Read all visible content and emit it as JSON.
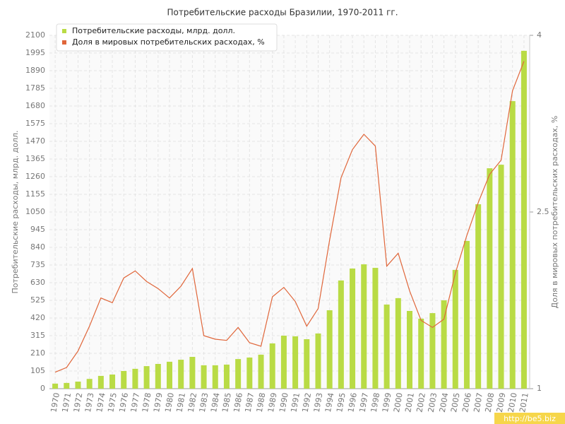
{
  "chart_data": {
    "type": "bar-line",
    "title": "Потребительские расходы Бразилии, 1970-2011 гг.",
    "y_label": "Потребительские расходы, млрд. долл.",
    "y2_label": "Доля в мировых потребительских расходах, %",
    "categories": [
      "1970",
      "1971",
      "1972",
      "1973",
      "1974",
      "1975",
      "1976",
      "1977",
      "1978",
      "1979",
      "1980",
      "1981",
      "1982",
      "1983",
      "1984",
      "1985",
      "1986",
      "1987",
      "1988",
      "1989",
      "1990",
      "1991",
      "1992",
      "1993",
      "1994",
      "1995",
      "1996",
      "1997",
      "1998",
      "1999",
      "2000",
      "2001",
      "2002",
      "2003",
      "2004",
      "2005",
      "2006",
      "2007",
      "2008",
      "2009",
      "2010",
      "2011"
    ],
    "series": [
      {
        "name": "Потребительские расходы, млрд. долл.",
        "type": "bar",
        "color": "#b9db45",
        "values": [
          30,
          34,
          42,
          58,
          76,
          84,
          105,
          118,
          134,
          147,
          160,
          172,
          189,
          139,
          139,
          143,
          176,
          185,
          202,
          269,
          315,
          311,
          294,
          328,
          466,
          643,
          714,
          739,
          718,
          500,
          538,
          462,
          416,
          449,
          525,
          706,
          878,
          1096,
          1310,
          1331,
          1709,
          2008
        ]
      },
      {
        "name": "Доля в мировых потребительских расходах, %",
        "type": "line",
        "axis": "y2",
        "color": "#e0663a",
        "values": [
          1.14,
          1.18,
          1.32,
          1.53,
          1.77,
          1.73,
          1.94,
          2.0,
          1.91,
          1.85,
          1.77,
          1.87,
          2.02,
          1.45,
          1.42,
          1.41,
          1.52,
          1.39,
          1.36,
          1.78,
          1.86,
          1.74,
          1.53,
          1.68,
          2.26,
          2.79,
          3.03,
          3.16,
          3.06,
          2.04,
          2.15,
          1.83,
          1.58,
          1.52,
          1.59,
          1.98,
          2.3,
          2.58,
          2.82,
          2.94,
          3.53,
          3.78
        ]
      }
    ],
    "ylim": [
      0,
      2100
    ],
    "yticks": [
      0,
      105,
      210,
      315,
      420,
      525,
      630,
      735,
      840,
      945,
      1050,
      1155,
      1260,
      1365,
      1470,
      1575,
      1680,
      1785,
      1890,
      1995,
      2100
    ],
    "y2lim": [
      1,
      4
    ],
    "y2ticks": [
      1,
      2.5,
      4
    ],
    "grid": true
  },
  "watermark": "http://be5.biz"
}
